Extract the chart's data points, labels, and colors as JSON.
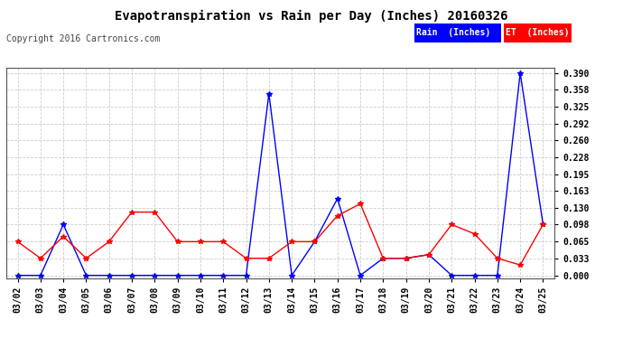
{
  "title": "Evapotranspiration vs Rain per Day (Inches) 20160326",
  "copyright": "Copyright 2016 Cartronics.com",
  "dates": [
    "03/02",
    "03/03",
    "03/04",
    "03/05",
    "03/06",
    "03/07",
    "03/08",
    "03/09",
    "03/10",
    "03/11",
    "03/12",
    "03/13",
    "03/14",
    "03/15",
    "03/16",
    "03/17",
    "03/18",
    "03/19",
    "03/20",
    "03/21",
    "03/22",
    "03/23",
    "03/24",
    "03/25"
  ],
  "rain": [
    0.0,
    0.0,
    0.098,
    0.0,
    0.0,
    0.0,
    0.0,
    0.0,
    0.0,
    0.0,
    0.0,
    0.35,
    0.0,
    0.065,
    0.148,
    0.0,
    0.033,
    0.033,
    0.04,
    0.0,
    0.0,
    0.0,
    0.39,
    0.098
  ],
  "et": [
    0.065,
    0.033,
    0.075,
    0.033,
    0.065,
    0.122,
    0.122,
    0.065,
    0.065,
    0.065,
    0.033,
    0.033,
    0.065,
    0.065,
    0.115,
    0.138,
    0.033,
    0.033,
    0.04,
    0.098,
    0.08,
    0.033,
    0.02,
    0.098
  ],
  "rain_color": "#0000ff",
  "et_color": "#ff0000",
  "bg_color": "#ffffff",
  "grid_color": "#cccccc",
  "yticks": [
    0.0,
    0.033,
    0.065,
    0.098,
    0.13,
    0.163,
    0.195,
    0.228,
    0.26,
    0.292,
    0.325,
    0.358,
    0.39
  ],
  "ymax": 0.4,
  "legend_rain_bg": "#0000ff",
  "legend_et_bg": "#ff0000",
  "legend_rain_text": "Rain  (Inches)",
  "legend_et_text": "ET  (Inches)"
}
